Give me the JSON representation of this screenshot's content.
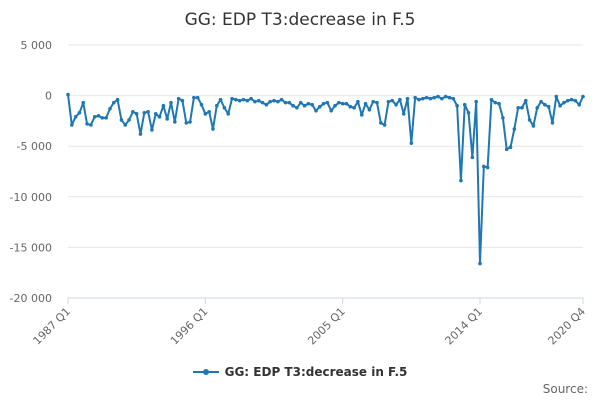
{
  "title": "GG: EDP T3:decrease in F.5",
  "source_label": "Source:",
  "colors": {
    "series": "#1f77b4"
  },
  "chart_data": {
    "type": "line",
    "title": "GG: EDP T3:decrease in F.5",
    "xlabel": "",
    "ylabel": "",
    "ylim": [
      -20000,
      5000
    ],
    "y_ticks": [
      5000,
      0,
      -5000,
      -10000,
      -15000,
      -20000
    ],
    "y_tick_labels": [
      "5 000",
      "0",
      "-5 000",
      "-10 000",
      "-15 000",
      "-20 000"
    ],
    "x_tick_labels": [
      "1987 Q1",
      "1996 Q1",
      "2005 Q1",
      "2014 Q1",
      "2020 Q4"
    ],
    "x_tick_positions": [
      0,
      36,
      72,
      108,
      135
    ],
    "grid": true,
    "legend": "bottom-center",
    "x": [
      "1987 Q1",
      "1987 Q2",
      "1987 Q3",
      "1987 Q4",
      "1988 Q1",
      "1988 Q2",
      "1988 Q3",
      "1988 Q4",
      "1989 Q1",
      "1989 Q2",
      "1989 Q3",
      "1989 Q4",
      "1990 Q1",
      "1990 Q2",
      "1990 Q3",
      "1990 Q4",
      "1991 Q1",
      "1991 Q2",
      "1991 Q3",
      "1991 Q4",
      "1992 Q1",
      "1992 Q2",
      "1992 Q3",
      "1992 Q4",
      "1993 Q1",
      "1993 Q2",
      "1993 Q3",
      "1993 Q4",
      "1994 Q1",
      "1994 Q2",
      "1994 Q3",
      "1994 Q4",
      "1995 Q1",
      "1995 Q2",
      "1995 Q3",
      "1995 Q4",
      "1996 Q1",
      "1996 Q2",
      "1996 Q3",
      "1996 Q4",
      "1997 Q1",
      "1997 Q2",
      "1997 Q3",
      "1997 Q4",
      "1998 Q1",
      "1998 Q2",
      "1998 Q3",
      "1998 Q4",
      "1999 Q1",
      "1999 Q2",
      "1999 Q3",
      "1999 Q4",
      "2000 Q1",
      "2000 Q2",
      "2000 Q3",
      "2000 Q4",
      "2001 Q1",
      "2001 Q2",
      "2001 Q3",
      "2001 Q4",
      "2002 Q1",
      "2002 Q2",
      "2002 Q3",
      "2002 Q4",
      "2003 Q1",
      "2003 Q2",
      "2003 Q3",
      "2003 Q4",
      "2004 Q1",
      "2004 Q2",
      "2004 Q3",
      "2004 Q4",
      "2005 Q1",
      "2005 Q2",
      "2005 Q3",
      "2005 Q4",
      "2006 Q1",
      "2006 Q2",
      "2006 Q3",
      "2006 Q4",
      "2007 Q1",
      "2007 Q2",
      "2007 Q3",
      "2007 Q4",
      "2008 Q1",
      "2008 Q2",
      "2008 Q3",
      "2008 Q4",
      "2009 Q1",
      "2009 Q2",
      "2009 Q3",
      "2009 Q4",
      "2010 Q1",
      "2010 Q2",
      "2010 Q3",
      "2010 Q4",
      "2011 Q1",
      "2011 Q2",
      "2011 Q3",
      "2011 Q4",
      "2012 Q1",
      "2012 Q2",
      "2012 Q3",
      "2012 Q4",
      "2013 Q1",
      "2013 Q2",
      "2013 Q3",
      "2013 Q4",
      "2014 Q1",
      "2014 Q2",
      "2014 Q3",
      "2014 Q4",
      "2015 Q1",
      "2015 Q2",
      "2015 Q3",
      "2015 Q4",
      "2016 Q1",
      "2016 Q2",
      "2016 Q3",
      "2016 Q4",
      "2017 Q1",
      "2017 Q2",
      "2017 Q3",
      "2017 Q4",
      "2018 Q1",
      "2018 Q2",
      "2018 Q3",
      "2018 Q4",
      "2019 Q1",
      "2019 Q2",
      "2019 Q3",
      "2019 Q4",
      "2020 Q1",
      "2020 Q2",
      "2020 Q3",
      "2020 Q4"
    ],
    "series": [
      {
        "name": "GG: EDP T3:decrease in F.5",
        "values": [
          100,
          -2900,
          -2100,
          -1700,
          -700,
          -2800,
          -2900,
          -2100,
          -2000,
          -2200,
          -2200,
          -1300,
          -700,
          -400,
          -2400,
          -2900,
          -2400,
          -1600,
          -1800,
          -3800,
          -1700,
          -1600,
          -3400,
          -1800,
          -2100,
          -1000,
          -2300,
          -700,
          -2600,
          -300,
          -500,
          -2700,
          -2600,
          -200,
          -200,
          -900,
          -1800,
          -1600,
          -3300,
          -1000,
          -400,
          -1200,
          -1800,
          -300,
          -400,
          -500,
          -400,
          -500,
          -300,
          -600,
          -500,
          -700,
          -900,
          -600,
          -500,
          -600,
          -400,
          -700,
          -700,
          -1000,
          -1200,
          -700,
          -1000,
          -800,
          -900,
          -1500,
          -1100,
          -800,
          -700,
          -1500,
          -1000,
          -700,
          -800,
          -800,
          -1100,
          -1200,
          -600,
          -1900,
          -800,
          -1400,
          -600,
          -700,
          -2700,
          -2900,
          -600,
          -500,
          -900,
          -400,
          -1800,
          -300,
          -4700,
          -200,
          -400,
          -300,
          -200,
          -300,
          -200,
          -100,
          -300,
          -100,
          -200,
          -300,
          -1000,
          -8400,
          -900,
          -1700,
          -6100,
          -600,
          -16600,
          -7000,
          -7100,
          -400,
          -700,
          -800,
          -2200,
          -5300,
          -5100,
          -3300,
          -1200,
          -1200,
          -500,
          -2400,
          -3000,
          -1200,
          -600,
          -900,
          -1100,
          -2700,
          -100,
          -1000,
          -700,
          -500,
          -400,
          -500,
          -900,
          -100
        ]
      }
    ]
  }
}
